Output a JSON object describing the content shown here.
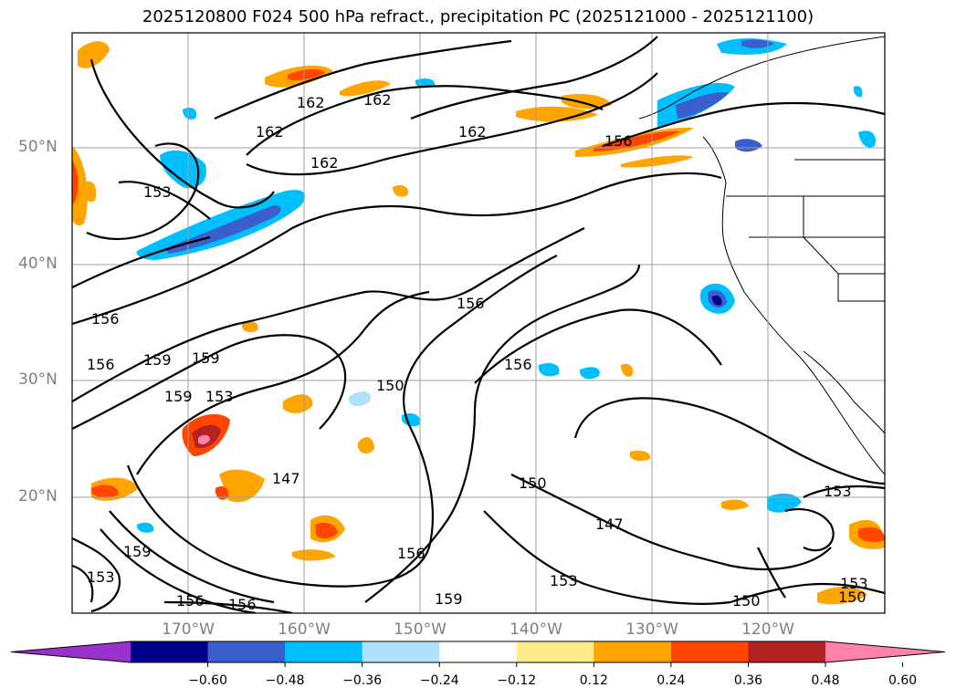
{
  "title": "2025120800 F024 500 hPa refract., precipitation PC (2025121000 - 2025121100)",
  "lat_labels": [
    "50°N",
    "40°N",
    "30°N",
    "20°N"
  ],
  "lon_labels": [
    "170°W",
    "160°W",
    "150°W",
    "140°W",
    "130°W",
    "120°W"
  ],
  "colorbar": {
    "extend": "both",
    "ticks": [
      "−0.60",
      "−0.48",
      "−0.36",
      "−0.24",
      "−0.12",
      "0.12",
      "0.24",
      "0.36",
      "0.48",
      "0.60"
    ],
    "colors": [
      "#9932cc",
      "#00008b",
      "#3a5fcd",
      "#00bfff",
      "#b0e2ff",
      "#ffffff",
      "#ffec8b",
      "#ffa500",
      "#ff4500",
      "#b22222",
      "#ff82ab"
    ]
  },
  "contour_labels": [
    "162",
    "162",
    "162",
    "162",
    "162",
    "156",
    "153",
    "156",
    "156",
    "159",
    "159",
    "159",
    "153",
    "156",
    "150",
    "156",
    "147",
    "150",
    "147",
    "153",
    "156",
    "159",
    "153",
    "156",
    "156",
    "159",
    "153",
    "150",
    "153",
    "150"
  ],
  "legend_units": "",
  "colors": {
    "frame": "#000000",
    "grid": "#a0a0a0",
    "axis_text": "#808080"
  }
}
